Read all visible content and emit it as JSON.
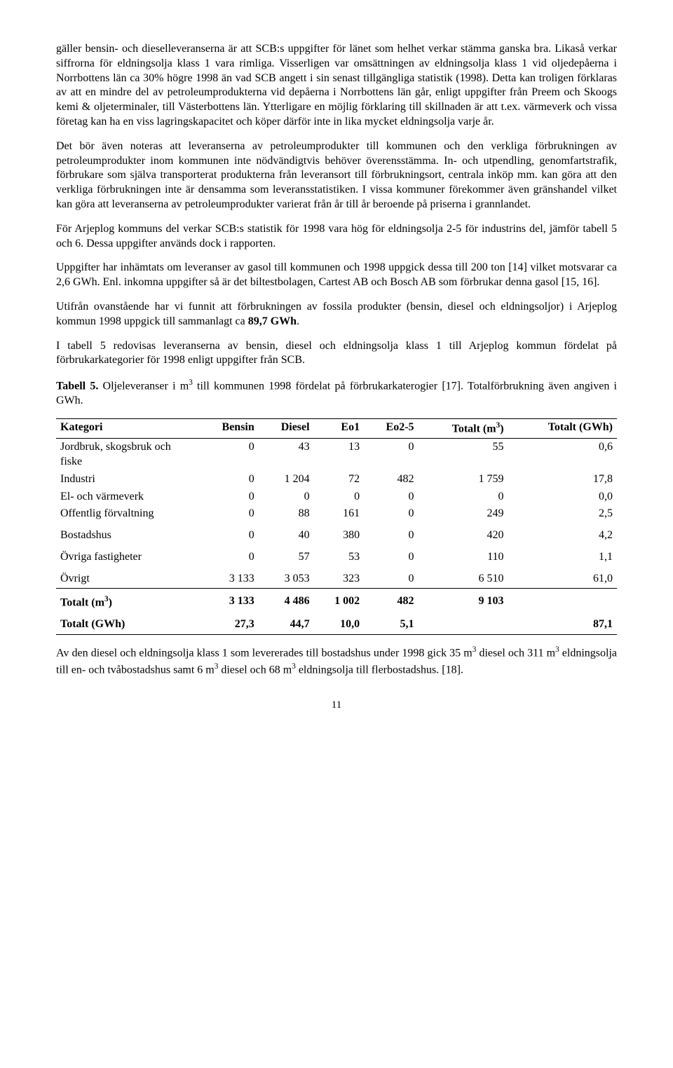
{
  "paragraphs": {
    "p1": "gäller bensin- och dieselleveranserna är att SCB:s uppgifter för länet som helhet verkar stämma ganska bra. Likaså verkar siffrorna för eldningsolja klass 1 vara rimliga. Visserligen var omsättningen av eldningsolja klass 1 vid oljedepåerna i Norrbottens län ca 30% högre 1998 än vad SCB angett i sin senast tillgängliga statistik (1998). Detta kan troligen förklaras av att en mindre del av petroleumprodukterna vid depåerna i Norrbottens län går, enligt uppgifter från Preem och Skoogs kemi & oljeterminaler, till Västerbottens län. Ytterligare en möjlig förklaring till skillnaden är att t.ex. värmeverk och vissa företag kan ha en viss lagringskapacitet och köper därför inte in lika mycket eldningsolja varje år.",
    "p2": "Det bör även noteras att leveranserna av petroleumprodukter till kommunen och den verkliga förbrukningen av petroleumprodukter inom kommunen inte nödvändigtvis behöver överensstämma. In- och utpendling, genomfartstrafik, förbrukare som själva transporterat produkterna från leveransort till förbrukningsort, centrala inköp mm. kan göra att den verkliga förbrukningen inte är densamma som leveransstatistiken. I vissa kommuner förekommer även gränshandel vilket kan göra att leveranserna av petroleumprodukter varierat från år till år beroende på priserna i grannlandet.",
    "p3": "För Arjeplog kommuns del verkar SCB:s statistik för 1998 vara hög för eldningsolja 2-5 för industrins del, jämför tabell 5 och 6. Dessa uppgifter används dock i rapporten.",
    "p4": "Uppgifter har inhämtats om leveranser av gasol till kommunen och 1998 uppgick dessa till 200 ton [14] vilket motsvarar ca 2,6 GWh. Enl. inkomna uppgifter så är det biltestbolagen, Cartest AB och Bosch AB som förbrukar denna gasol [15, 16].",
    "p5a": "Utifrån ovanstående har vi funnit att förbrukningen av fossila produkter (bensin, diesel och eldningsoljor) i Arjeplog kommun 1998 uppgick till sammanlagt ca ",
    "p5b": "89,7 GWh",
    "p5c": ".",
    "p6": "I tabell 5 redovisas leveranserna av bensin, diesel och eldningsolja klass 1 till Arjeplog kommun fördelat på förbrukarkategorier för 1998 enligt uppgifter från SCB.",
    "table_caption_a": "Tabell 5.",
    "table_caption_b": " Oljeleveranser i m",
    "table_caption_sup": "3",
    "table_caption_c": " till kommunen 1998 fördelat på förbrukarkaterogier [17]. Totalförbrukning även angiven i GWh.",
    "p_after": "Av den diesel och eldningsolja klass 1 som levererades till bostadshus under 1998 gick 35 m",
    "p_after_s1": "3",
    "p_after2": " diesel och 311 m",
    "p_after_s2": "3",
    "p_after3": " eldningsolja till en- och tvåbostadshus samt 6 m",
    "p_after_s3": "3",
    "p_after4": " diesel och 68 m",
    "p_after_s4": "3",
    "p_after5": " eldningsolja till flerbostadshus. [18]."
  },
  "table": {
    "headers": {
      "c0": "Kategori",
      "c1": "Bensin",
      "c2": "Diesel",
      "c3": "Eo1",
      "c4": "Eo2-5",
      "c5a": "Totalt (m",
      "c5sup": "3",
      "c5b": ")",
      "c6": "Totalt (GWh)"
    },
    "rows": [
      {
        "c0": "Jordbruk, skogsbruk och fiske",
        "c1": "0",
        "c2": "43",
        "c3": "13",
        "c4": "0",
        "c5": "55",
        "c6": "0,6"
      },
      {
        "c0": "Industri",
        "c1": "0",
        "c2": "1 204",
        "c3": "72",
        "c4": "482",
        "c5": "1 759",
        "c6": "17,8"
      },
      {
        "c0": "El- och värmeverk",
        "c1": "0",
        "c2": "0",
        "c3": "0",
        "c4": "0",
        "c5": "0",
        "c6": "0,0"
      },
      {
        "c0": "Offentlig förvaltning",
        "c1": "0",
        "c2": "88",
        "c3": "161",
        "c4": "0",
        "c5": "249",
        "c6": "2,5"
      },
      {
        "c0": "Bostadshus",
        "c1": "0",
        "c2": "40",
        "c3": "380",
        "c4": "0",
        "c5": "420",
        "c6": "4,2"
      },
      {
        "c0": "Övriga fastigheter",
        "c1": "0",
        "c2": "57",
        "c3": "53",
        "c4": "0",
        "c5": "110",
        "c6": "1,1"
      },
      {
        "c0": "Övrigt",
        "c1": "3 133",
        "c2": "3 053",
        "c3": "323",
        "c4": "0",
        "c5": "6 510",
        "c6": "61,0"
      }
    ],
    "total_m3": {
      "c0a": "Totalt (m",
      "c0sup": "3",
      "c0b": ")",
      "c1": "3 133",
      "c2": "4 486",
      "c3": "1 002",
      "c4": "482",
      "c5": "9 103",
      "c6": ""
    },
    "total_gwh": {
      "c0": "Totalt (GWh)",
      "c1": "27,3",
      "c2": "44,7",
      "c3": "10,0",
      "c4": "5,1",
      "c5": "",
      "c6": "87,1"
    }
  },
  "page_number": "11"
}
